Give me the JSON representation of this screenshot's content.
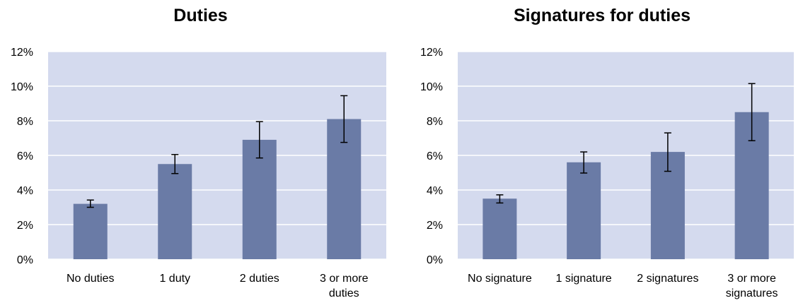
{
  "colors": {
    "plot_bg": "#d4daee",
    "bar": "#6a7ba6",
    "grid": "#ffffff",
    "error": "#000000"
  },
  "chart_data": [
    {
      "type": "bar",
      "title": "Duties",
      "categories": [
        [
          "No duties"
        ],
        [
          "1 duty"
        ],
        [
          "2 duties"
        ],
        [
          "3 or more",
          "duties"
        ]
      ],
      "values": [
        3.2,
        5.5,
        6.9,
        8.1
      ],
      "error_low": [
        3.0,
        4.95,
        5.85,
        6.75
      ],
      "error_high": [
        3.42,
        6.05,
        7.95,
        9.45
      ],
      "ylim": [
        0,
        12
      ],
      "yticks": [
        0,
        2,
        4,
        6,
        8,
        10,
        12
      ],
      "ytick_labels": [
        "0%",
        "2%",
        "4%",
        "6%",
        "8%",
        "10%",
        "12%"
      ],
      "grid": true
    },
    {
      "type": "bar",
      "title": "Signatures for duties",
      "categories": [
        [
          "No signature"
        ],
        [
          "1 signature"
        ],
        [
          "2 signatures"
        ],
        [
          "3 or more",
          "signatures"
        ]
      ],
      "values": [
        3.5,
        5.6,
        6.2,
        8.5
      ],
      "error_low": [
        3.25,
        4.98,
        5.08,
        6.85
      ],
      "error_high": [
        3.72,
        6.2,
        7.3,
        10.15
      ],
      "ylim": [
        0,
        12
      ],
      "yticks": [
        0,
        2,
        4,
        6,
        8,
        10,
        12
      ],
      "ytick_labels": [
        "0%",
        "2%",
        "4%",
        "6%",
        "8%",
        "10%",
        "12%"
      ],
      "grid": true
    }
  ]
}
